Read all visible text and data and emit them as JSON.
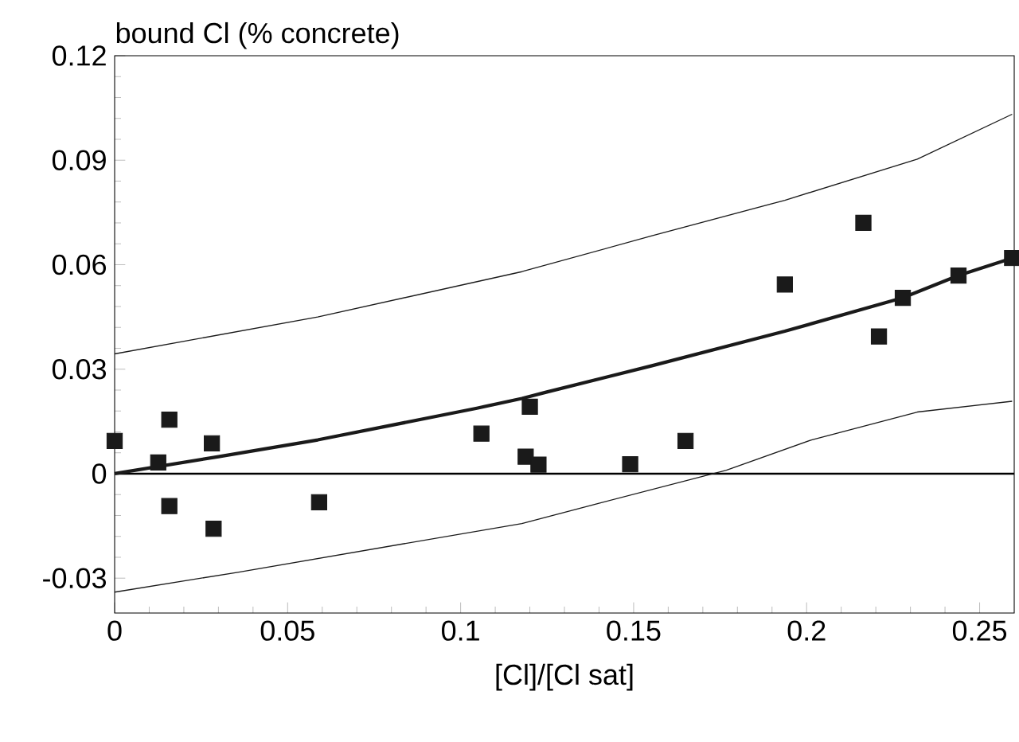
{
  "chart_data": {
    "type": "scatter",
    "ylabel": "bound Cl (% concrete)",
    "xlabel": "[Cl]/[Cl sat]",
    "xlim": [
      0,
      0.26
    ],
    "ylim": [
      -0.04,
      0.12
    ],
    "xticks": [
      0,
      0.05,
      0.1,
      0.15,
      0.2,
      0.25
    ],
    "yticks": [
      -0.03,
      0,
      0.03,
      0.06,
      0.09,
      0.12
    ],
    "grid": false,
    "marker": "square",
    "ref_lines": [
      {
        "axis": "y",
        "value": 0,
        "color": "#000000"
      }
    ],
    "series": [
      {
        "color": "#1a1a1a",
        "x": [
          0,
          0.0126,
          0.0158,
          0.0158,
          0.0281,
          0.0286,
          0.0591,
          0.106,
          0.12,
          0.1188,
          0.1225,
          0.149,
          0.165,
          0.1937,
          0.2164,
          0.2278,
          0.2209,
          0.2439,
          0.2594
        ],
        "values": [
          0.0094,
          0.0032,
          0.0155,
          -0.0093,
          0.0087,
          -0.0158,
          -0.0082,
          0.0115,
          0.0192,
          0.0049,
          0.0026,
          0.0027,
          0.0094,
          0.0543,
          0.072,
          0.0505,
          0.0394,
          0.0569,
          0.0619
        ]
      },
      {
        "type": "line",
        "color": "#1a1a1a",
        "marker": "none",
        "x": [
          0,
          0.03,
          0.0587,
          0.1047,
          0.1177,
          0.1247,
          0.1553,
          0.1937,
          0.2278,
          0.2439,
          0.2594
        ],
        "values": [
          0,
          0.0049,
          0.0097,
          0.0188,
          0.0216,
          0.0234,
          0.031,
          0.0409,
          0.0505,
          0.0569,
          0.0619
        ]
      },
      {
        "type": "line",
        "color": "#1a1a1a",
        "marker": "none",
        "x": [
          0,
          0.0587,
          0.1177,
          0.1553,
          0.1937,
          0.232,
          0.2594
        ],
        "values": [
          0.0344,
          0.045,
          0.058,
          0.0683,
          0.0785,
          0.0903,
          0.1032
        ]
      },
      {
        "type": "line",
        "color": "#1a1a1a",
        "marker": "none",
        "x": [
          0,
          0.0356,
          0.1177,
          0.14,
          0.1768,
          0.2014,
          0.232,
          0.2594
        ],
        "values": [
          -0.034,
          -0.0283,
          -0.0143,
          -0.0085,
          0.001,
          0.0097,
          0.0177,
          0.0208
        ]
      }
    ]
  }
}
